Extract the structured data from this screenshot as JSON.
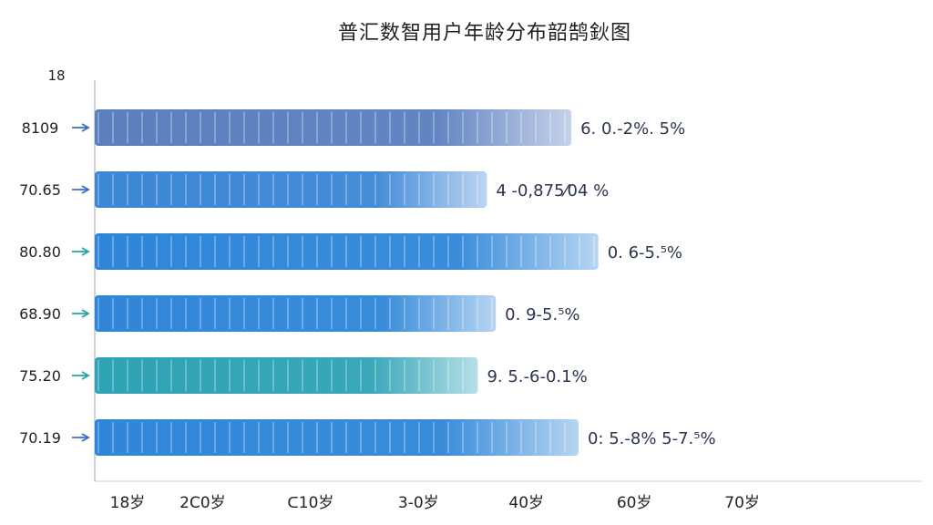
{
  "chart_data": {
    "type": "bar",
    "orientation": "horizontal",
    "title": "普汇数智用户年龄分布韶鹄鈥图",
    "y_top_label": "18",
    "categories": [
      "8109",
      "70.65",
      "80.80",
      "68.90",
      "75.20",
      "70.19"
    ],
    "values": [
      44.5,
      39.8,
      46.0,
      40.3,
      39.3,
      44.9
    ],
    "value_labels": [
      "6. 0.-2%. 5%",
      "4 -0,875⁄04 %",
      "0. 6-5.⁵%",
      "0. 9-5.⁵%",
      "9. 5.-6-0.1%",
      "0: 5.-8%  5-7.⁵%"
    ],
    "colors": [
      "#5a7fbf",
      "#3b86d6",
      "#2f86d8",
      "#2f86d8",
      "#2ea3b5",
      "#2f86d8"
    ],
    "arrow_colors": [
      "#3b6fc4",
      "#3b6fc4",
      "#24a7a0",
      "#24a7a0",
      "#24a7a0",
      "#3b6fc4"
    ],
    "x_tick_labels": [
      "18岁",
      "2C0岁",
      "ᑕ10岁",
      "3-0岁",
      "40岁",
      "60岁",
      "70岁"
    ],
    "x_tick_values": [
      18,
      24,
      30,
      36,
      42,
      48,
      54
    ],
    "xlim": [
      18,
      64
    ],
    "grid": false,
    "legend": "none"
  }
}
